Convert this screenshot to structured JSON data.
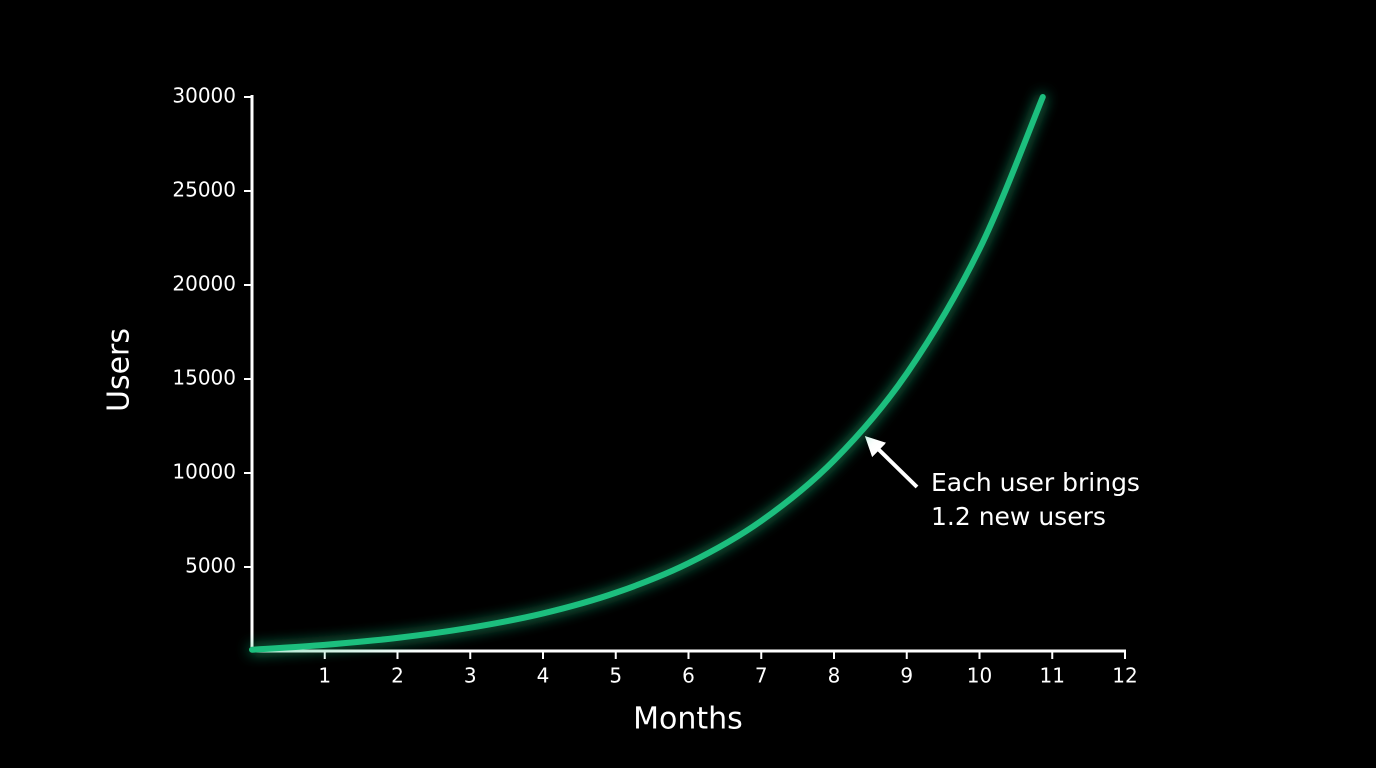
{
  "chart_data": {
    "type": "line",
    "x_label": "Months",
    "y_label": "Users",
    "annotation": [
      "Each user brings",
      "1.2 new users"
    ],
    "x": [
      0,
      1,
      2,
      3,
      4,
      5,
      6,
      7,
      8,
      9,
      10,
      10.87
    ],
    "series": [
      {
        "color": "#1fbf7e",
        "values": [
          600,
          860,
          1230,
          1770,
          2530,
          3630,
          5200,
          7450,
          10670,
          15290,
          21910,
          30000
        ]
      }
    ],
    "xlim": [
      0,
      12
    ],
    "xticks": [
      1,
      2,
      3,
      4,
      5,
      6,
      7,
      8,
      9,
      10,
      11,
      12
    ],
    "ylim": [
      500,
      30000
    ],
    "yticks": [
      5000,
      10000,
      15000,
      20000,
      25000,
      30000
    ]
  }
}
